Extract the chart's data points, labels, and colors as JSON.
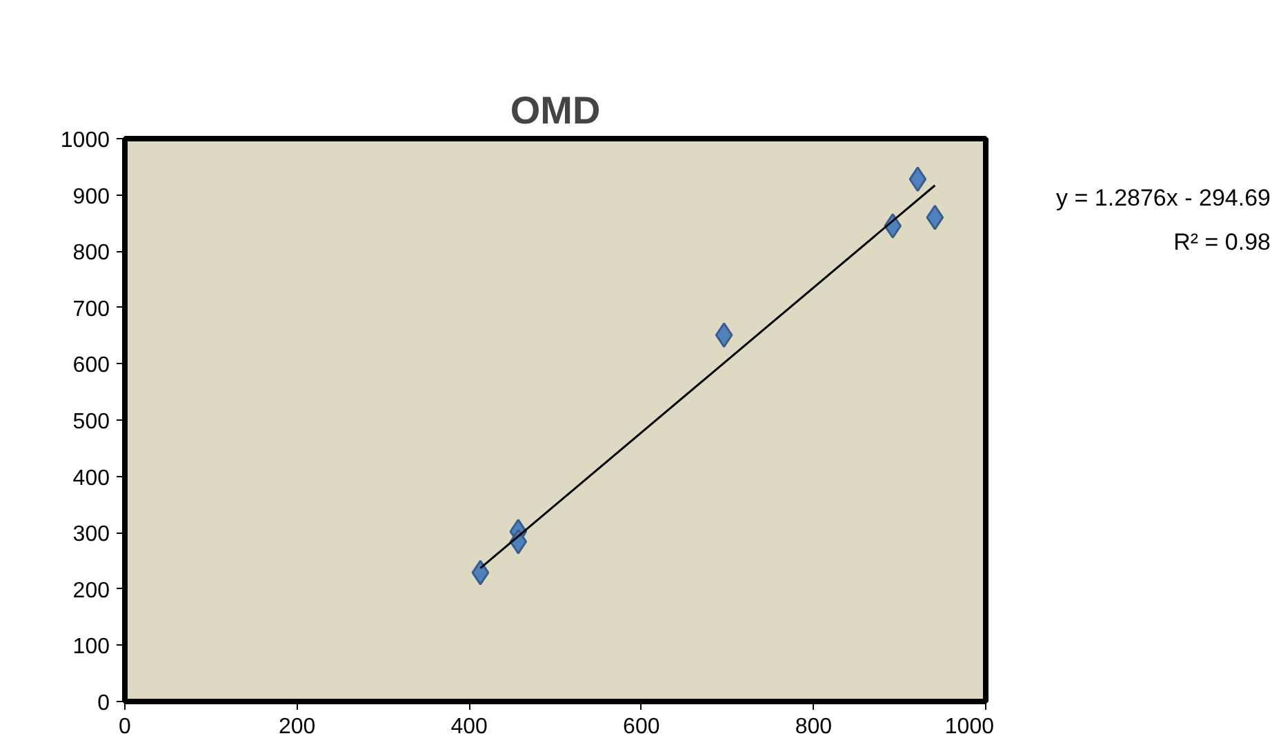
{
  "chart_data": {
    "type": "scatter",
    "title": "OMD",
    "series": [
      {
        "color": "#4f81bd",
        "marker": "diamond",
        "x": [
          413,
          457,
          457,
          696,
          892,
          921,
          941
        ],
        "values": [
          229,
          302,
          284,
          651,
          845,
          928,
          860
        ]
      },
      {
        "type": "line",
        "color": "#000000",
        "marker": "none",
        "x": [
          413,
          941
        ],
        "values": [
          237,
          917
        ]
      }
    ],
    "annotations": [
      "y = 1.2876x - 294.69",
      "R² = 0.98"
    ],
    "xlim": [
      0,
      1000
    ],
    "ylim": [
      0,
      1000
    ],
    "xticks": [
      0,
      200,
      400,
      600,
      800,
      1000
    ],
    "yticks": [
      0,
      100,
      200,
      300,
      400,
      500,
      600,
      700,
      800,
      900,
      1000
    ],
    "grid": false
  }
}
